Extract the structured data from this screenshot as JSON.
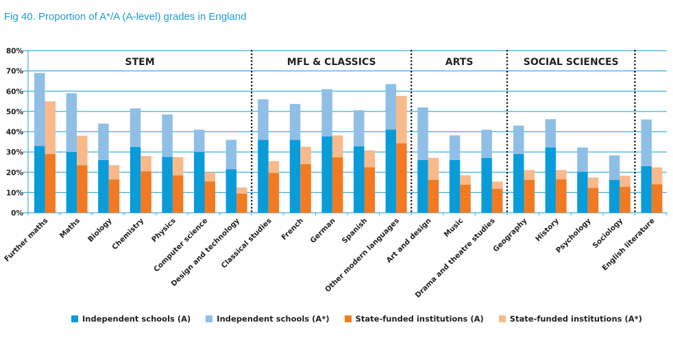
{
  "title": "Fig 40. Proportion of A*/A (A-level) grades in England",
  "chart_data": {
    "type": "bar",
    "stacked": true,
    "title": "Fig 40. Proportion of A*/A (A-level) grades in England",
    "ylim": [
      0,
      80
    ],
    "yticks": [
      "0%",
      "10%",
      "20%",
      "30%",
      "40%",
      "50%",
      "60%",
      "70%",
      "80%"
    ],
    "grid": true,
    "legend_placement": "bottom",
    "groups": [
      {
        "label": "STEM",
        "count": 7
      },
      {
        "label": "MFL & CLASSICS",
        "count": 5
      },
      {
        "label": "ARTS",
        "count": 3
      },
      {
        "label": "SOCIAL SCIENCES",
        "count": 4
      },
      {
        "label": "",
        "count": 1
      }
    ],
    "categories": [
      "Further maths",
      "Maths",
      "Biology",
      "Chemistry",
      "Physics",
      "Computer science",
      "Design and technology",
      "Classical studies",
      "French",
      "German",
      "Spanish",
      "Other modern languages",
      "Art and design",
      "Music",
      "Drama and theatre studies",
      "Geography",
      "History",
      "Psychology",
      "Sociology",
      "English literature"
    ],
    "series": [
      {
        "name": "Independent schools (A)",
        "color": "#0a9bd9",
        "stack": "independent",
        "values": [
          33,
          30,
          26,
          32.5,
          27.5,
          30,
          21.5,
          36,
          36,
          37.7,
          32.8,
          41,
          26,
          26,
          27.1,
          29,
          32.3,
          20.2,
          16.3,
          23
        ]
      },
      {
        "name": "Independent schools (A*)",
        "color": "#8fbfe6",
        "stack": "independent",
        "values": [
          36,
          29,
          18,
          19,
          21,
          11,
          14.5,
          20,
          17.7,
          23.3,
          17.8,
          22.5,
          26,
          12.2,
          13.9,
          14,
          13.9,
          12,
          12,
          23
        ]
      },
      {
        "name": "State-funded institutions (A)",
        "color": "#f17a22",
        "stack": "state",
        "values": [
          29,
          23.5,
          16.5,
          20.5,
          18.5,
          15.5,
          9.5,
          19.7,
          24,
          27.4,
          22.5,
          34.3,
          16.3,
          13.9,
          11.9,
          16.3,
          16.5,
          12.3,
          12.8,
          14.1
        ]
      },
      {
        "name": "State-funded institutions (A*)",
        "color": "#f8b98b",
        "stack": "state",
        "values": [
          26,
          14.5,
          7,
          7.5,
          9,
          4.5,
          3,
          5.8,
          8.6,
          10.8,
          8.3,
          23.4,
          10.8,
          4.6,
          3.5,
          4.8,
          4.6,
          5.1,
          5.5,
          8.3
        ]
      }
    ]
  }
}
